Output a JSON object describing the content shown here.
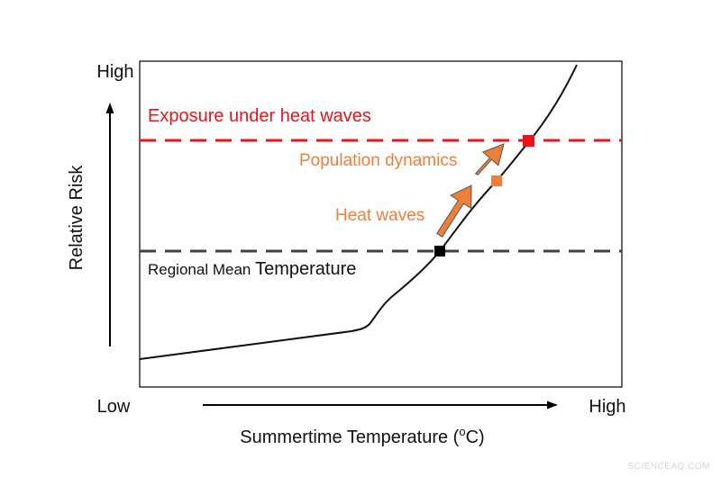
{
  "diagram": {
    "axes": {
      "y_label": "Relative Risk",
      "y_high": "High",
      "x_low": "Low",
      "x_high": "High",
      "x_label_text": "Summertime Temperature (",
      "x_label_sup": "o",
      "x_label_unit": "C)"
    },
    "labels": {
      "exposure": "Exposure under heat waves",
      "population": "Population dynamics",
      "heat_waves": "Heat waves",
      "regional_small": "Regional Mean ",
      "regional_large": "Temperature"
    },
    "colors": {
      "exposure_line": "#e8141b",
      "regional_line": "#404040",
      "orange": "#ec7f3a",
      "curve": "#111111",
      "frame": "#000000"
    },
    "markers": [
      "black-square",
      "orange-square",
      "red-square"
    ],
    "watermark": "SCIENCEAQ.COM"
  }
}
